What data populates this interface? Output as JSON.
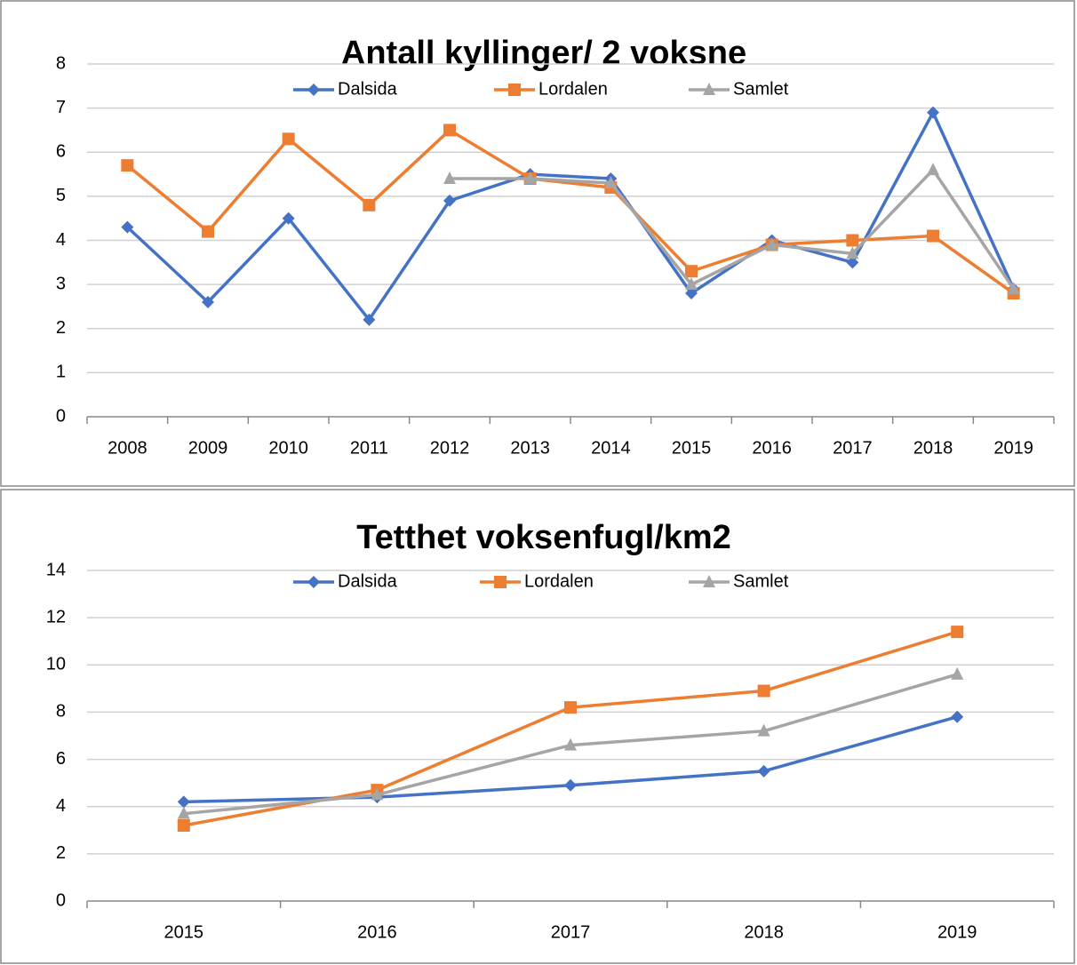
{
  "chart_data": [
    {
      "type": "line",
      "title": "Antall kyllinger/ 2 voksne",
      "categories": [
        "2008",
        "2009",
        "2010",
        "2011",
        "2012",
        "2013",
        "2014",
        "2015",
        "2016",
        "2017",
        "2018",
        "2019"
      ],
      "series": [
        {
          "name": "Dalsida",
          "color": "#4472c4",
          "marker": "diamond",
          "values": [
            4.3,
            2.6,
            4.5,
            2.2,
            4.9,
            5.5,
            5.4,
            2.8,
            4.0,
            3.5,
            6.9,
            2.9
          ]
        },
        {
          "name": "Lordalen",
          "color": "#ed7d31",
          "marker": "square",
          "values": [
            5.7,
            4.2,
            6.3,
            4.8,
            6.5,
            5.4,
            5.2,
            3.3,
            3.9,
            4.0,
            4.1,
            2.8
          ]
        },
        {
          "name": "Samlet",
          "color": "#a5a5a5",
          "marker": "triangle",
          "values": [
            null,
            null,
            null,
            null,
            5.4,
            5.4,
            5.3,
            3.0,
            3.9,
            3.7,
            5.6,
            2.9
          ]
        }
      ],
      "ylim": [
        0,
        8
      ],
      "yticks": [
        0,
        1,
        2,
        3,
        4,
        5,
        6,
        7,
        8
      ],
      "grid": true,
      "legend": "top"
    },
    {
      "type": "line",
      "title": "Tetthet voksenfugl/km2",
      "categories": [
        "2015",
        "2016",
        "2017",
        "2018",
        "2019"
      ],
      "series": [
        {
          "name": "Dalsida",
          "color": "#4472c4",
          "marker": "diamond",
          "values": [
            4.2,
            4.4,
            4.9,
            5.5,
            7.8
          ]
        },
        {
          "name": "Lordalen",
          "color": "#ed7d31",
          "marker": "square",
          "values": [
            3.2,
            4.7,
            8.2,
            8.9,
            11.4
          ]
        },
        {
          "name": "Samlet",
          "color": "#a5a5a5",
          "marker": "triangle",
          "values": [
            3.7,
            4.5,
            6.6,
            7.2,
            9.6
          ]
        }
      ],
      "ylim": [
        0,
        14
      ],
      "yticks": [
        0,
        2,
        4,
        6,
        8,
        10,
        12,
        14
      ],
      "grid": true,
      "legend": "top"
    }
  ]
}
